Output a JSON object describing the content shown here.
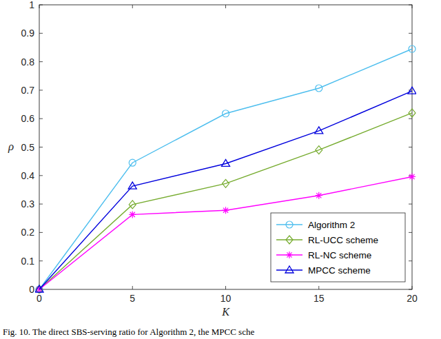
{
  "chart_data": {
    "type": "line",
    "title": "Fig. 10.  The direct SBS-serving ratio for Algorithm 2, the MPCC sche",
    "x_label": "K",
    "y_label": "ρ",
    "x": [
      0,
      5,
      10,
      15,
      20
    ],
    "xlim": [
      0,
      20
    ],
    "xticks": [
      0,
      5,
      10,
      15,
      20
    ],
    "ylim": [
      0,
      1
    ],
    "yticks": [
      0,
      0.1,
      0.2,
      0.3,
      0.4,
      0.5,
      0.6,
      0.7,
      0.8,
      0.9,
      1
    ],
    "grid": false,
    "legend": "southeast",
    "series": [
      {
        "name": "Algorithm 2",
        "color": "#4dbeee",
        "marker": "circle",
        "line_style": "solid",
        "values": [
          0,
          0.445,
          0.618,
          0.707,
          0.845
        ]
      },
      {
        "name": "RL-UCC scheme",
        "color": "#77ac30",
        "marker": "diamond",
        "line_style": "solid",
        "values": [
          0,
          0.298,
          0.372,
          0.49,
          0.62
        ]
      },
      {
        "name": "RL-NC scheme",
        "color": "#ff00ff",
        "marker": "asterisk",
        "line_style": "solid",
        "values": [
          0,
          0.263,
          0.278,
          0.33,
          0.396
        ]
      },
      {
        "name": "MPCC scheme",
        "color": "#0000dd",
        "marker": "triangle",
        "line_style": "solid",
        "values": [
          0,
          0.363,
          0.442,
          0.557,
          0.697
        ]
      }
    ]
  }
}
